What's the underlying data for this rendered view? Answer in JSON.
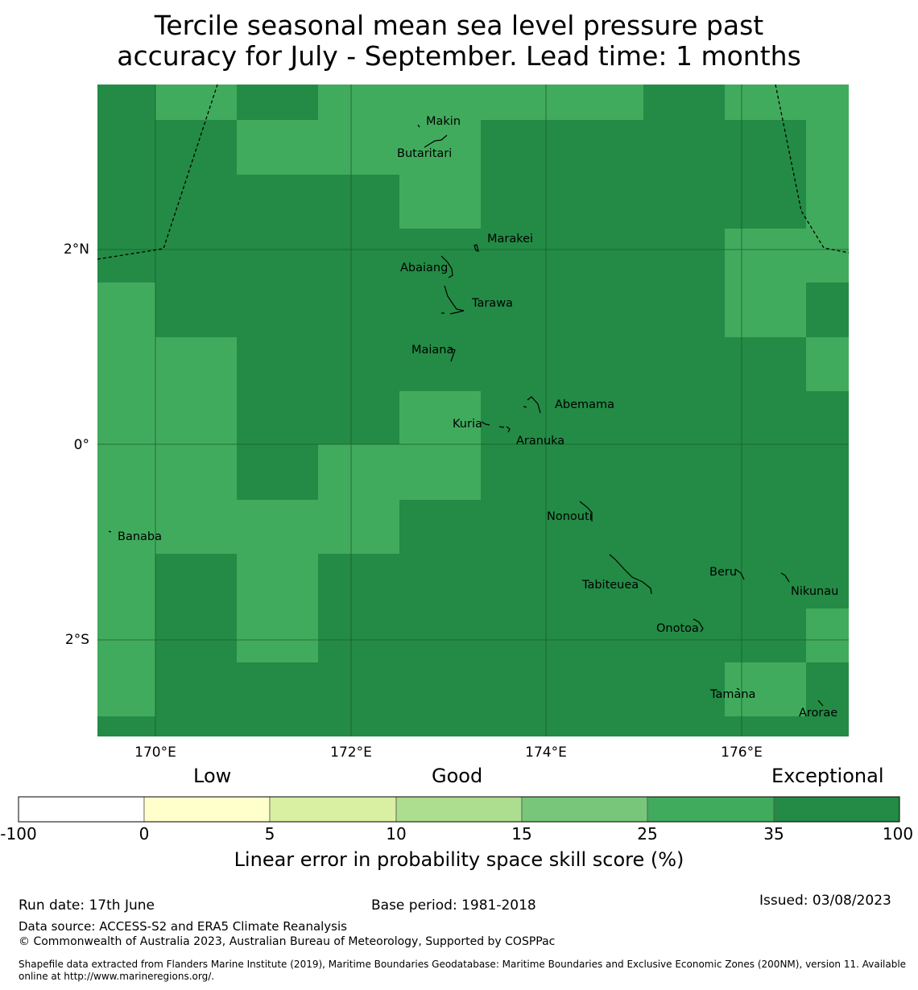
{
  "title": {
    "line1": "Tercile seasonal mean sea level pressure past",
    "line2": "accuracy for July - September. Lead time: 1 months"
  },
  "map": {
    "lon_labels": [
      "170°E",
      "172°E",
      "174°E",
      "176°E"
    ],
    "lat_labels": [
      "2°N",
      "0°",
      "2°S"
    ],
    "colors": {
      "light": "#41ab5d",
      "dark": "#238b45"
    },
    "islands": [
      "Makin",
      "Butaritari",
      "Marakei",
      "Abaiang",
      "Tarawa",
      "Maiana",
      "Abemama",
      "Kuria",
      "Aranuka",
      "Banaba",
      "Nonouti",
      "Beru",
      "Tabiteuea",
      "Nikunau",
      "Onotoa",
      "Tamana",
      "Arorae"
    ]
  },
  "legend": {
    "categories": [
      "Low",
      "Good",
      "Exceptional"
    ],
    "ticks": [
      "-100",
      "0",
      "5",
      "10",
      "15",
      "25",
      "35",
      "100"
    ],
    "colors": [
      "#ffffff",
      "#ffffcc",
      "#d9f0a3",
      "#addd8e",
      "#78c679",
      "#41ab5d",
      "#238b45"
    ],
    "label": "Linear error in probability space skill score (%)"
  },
  "footer": {
    "run_date": "Run date: 17th June",
    "base_period": "Base period: 1981-2018",
    "issued": "Issued: 03/08/2023",
    "data_source": "Data source: ACCESS-S2 and ERA5 Climate Reanalysis",
    "copyright": "© Commonwealth of Australia 2023, Australian Bureau of Meteorology, Supported by COSPPac",
    "shapefile": "Shapefile data extracted from Flanders Marine Institute (2019), Maritime Boundaries Geodatabase: Maritime Boundaries and Exclusive Economic Zones (200NM), version 11. Available online at http://www.marineregions.org/."
  }
}
